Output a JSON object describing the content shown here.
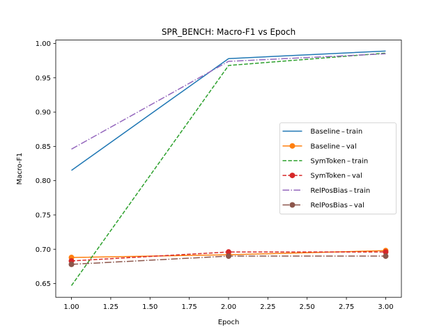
{
  "chart_data": {
    "type": "line",
    "title": "SPR_BENCH: Macro-F1 vs Epoch",
    "xlabel": "Epoch",
    "ylabel": "Macro-F1",
    "xlim": [
      0.9,
      3.1
    ],
    "ylim": [
      0.63,
      1.005
    ],
    "xticks": [
      "1.00",
      "1.25",
      "1.50",
      "1.75",
      "2.00",
      "2.25",
      "2.50",
      "2.75",
      "3.00"
    ],
    "xtick_values": [
      1.0,
      1.25,
      1.5,
      1.75,
      2.0,
      2.25,
      2.5,
      2.75,
      3.0
    ],
    "yticks": [
      "0.65",
      "0.70",
      "0.75",
      "0.80",
      "0.85",
      "0.90",
      "0.95",
      "1.00"
    ],
    "ytick_values": [
      0.65,
      0.7,
      0.75,
      0.8,
      0.85,
      0.9,
      0.95,
      1.0
    ],
    "grid": false,
    "legend_position": "center-right",
    "x": [
      1,
      2,
      3
    ],
    "series": [
      {
        "name": "Baseline – train",
        "values": [
          0.815,
          0.978,
          0.989
        ],
        "color": "#1f77b4",
        "dash": "solid",
        "marker": false
      },
      {
        "name": "Baseline – val",
        "values": [
          0.688,
          0.692,
          0.698
        ],
        "color": "#ff7f0e",
        "dash": "solid",
        "marker": true
      },
      {
        "name": "SymToken – train",
        "values": [
          0.647,
          0.968,
          0.986
        ],
        "color": "#2ca02c",
        "dash": "dashed",
        "marker": false
      },
      {
        "name": "SymToken – val",
        "values": [
          0.683,
          0.696,
          0.696
        ],
        "color": "#d62728",
        "dash": "dashed",
        "marker": true
      },
      {
        "name": "RelPosBias – train",
        "values": [
          0.846,
          0.974,
          0.985
        ],
        "color": "#9467bd",
        "dash": "dashdot",
        "marker": false
      },
      {
        "name": "RelPosBias – val",
        "values": [
          0.678,
          0.69,
          0.69
        ],
        "color": "#8c564b",
        "dash": "dashdot",
        "marker": true
      }
    ]
  }
}
